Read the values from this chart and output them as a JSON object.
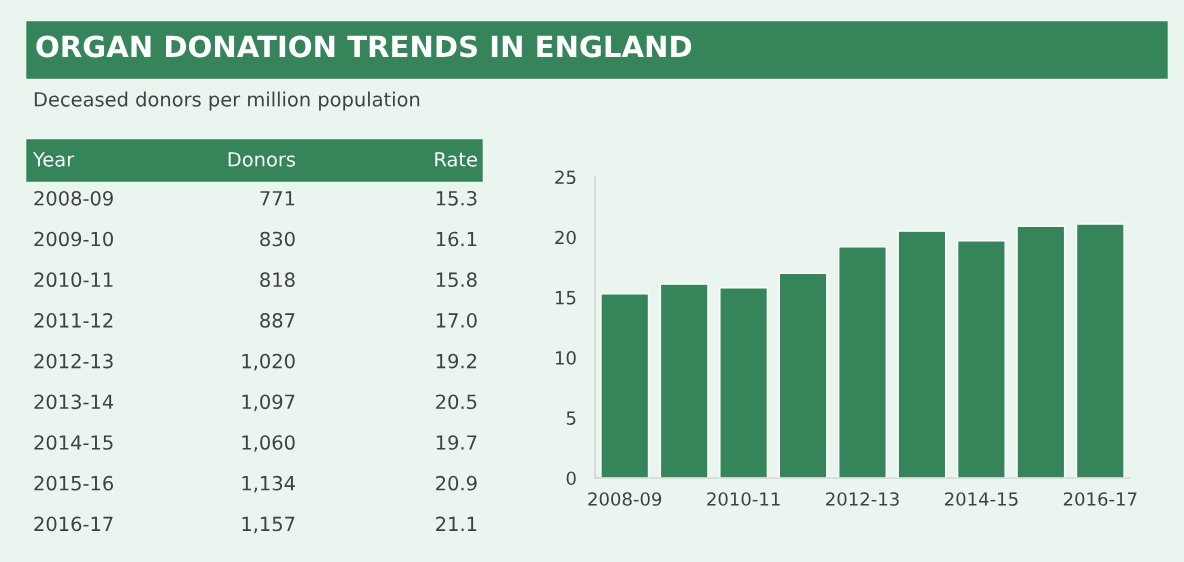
{
  "chart_data": [
    {
      "type": "other",
      "title": "ORGAN DONATION TRENDS IN ENGLAND",
      "subtitle": "Deceased donors per million population",
      "xlabel": "Year",
      "categories": [
        "2008-09",
        "2009-10",
        "2010-11",
        "2011-12",
        "2012-13",
        "2013-14",
        "2014-15",
        "2015-16",
        "2016-17"
      ],
      "series": [
        {
          "name": "Donors",
          "values": [
            771,
            830,
            818,
            887,
            1020,
            1097,
            1060,
            1134,
            1157
          ],
          "value_labels": [
            "771",
            "830",
            "818",
            "887",
            "1,020",
            "1,097",
            "1,060",
            "1,134",
            "1,157"
          ]
        },
        {
          "name": "Rate",
          "values": [
            15.3,
            16.1,
            15.8,
            17.0,
            19.2,
            20.5,
            19.7,
            20.9,
            21.1
          ],
          "value_labels": [
            "15.3",
            "16.1",
            "15.8",
            "17.0",
            "19.2",
            "20.5",
            "19.7",
            "20.9",
            "21.1"
          ]
        }
      ]
    },
    {
      "type": "bar",
      "categories": [
        "2008-09",
        null,
        "2010-11",
        null,
        "2012-13",
        null,
        "2014-15",
        null,
        "2016-17"
      ],
      "values": [
        15.3,
        16.1,
        15.8,
        17.0,
        19.2,
        20.5,
        19.7,
        20.9,
        21.1
      ],
      "color": "#35845a",
      "ylim": [
        0,
        25
      ],
      "yticks": [
        0,
        5,
        10,
        15,
        20,
        25
      ],
      "grid": false,
      "legend": false
    }
  ]
}
